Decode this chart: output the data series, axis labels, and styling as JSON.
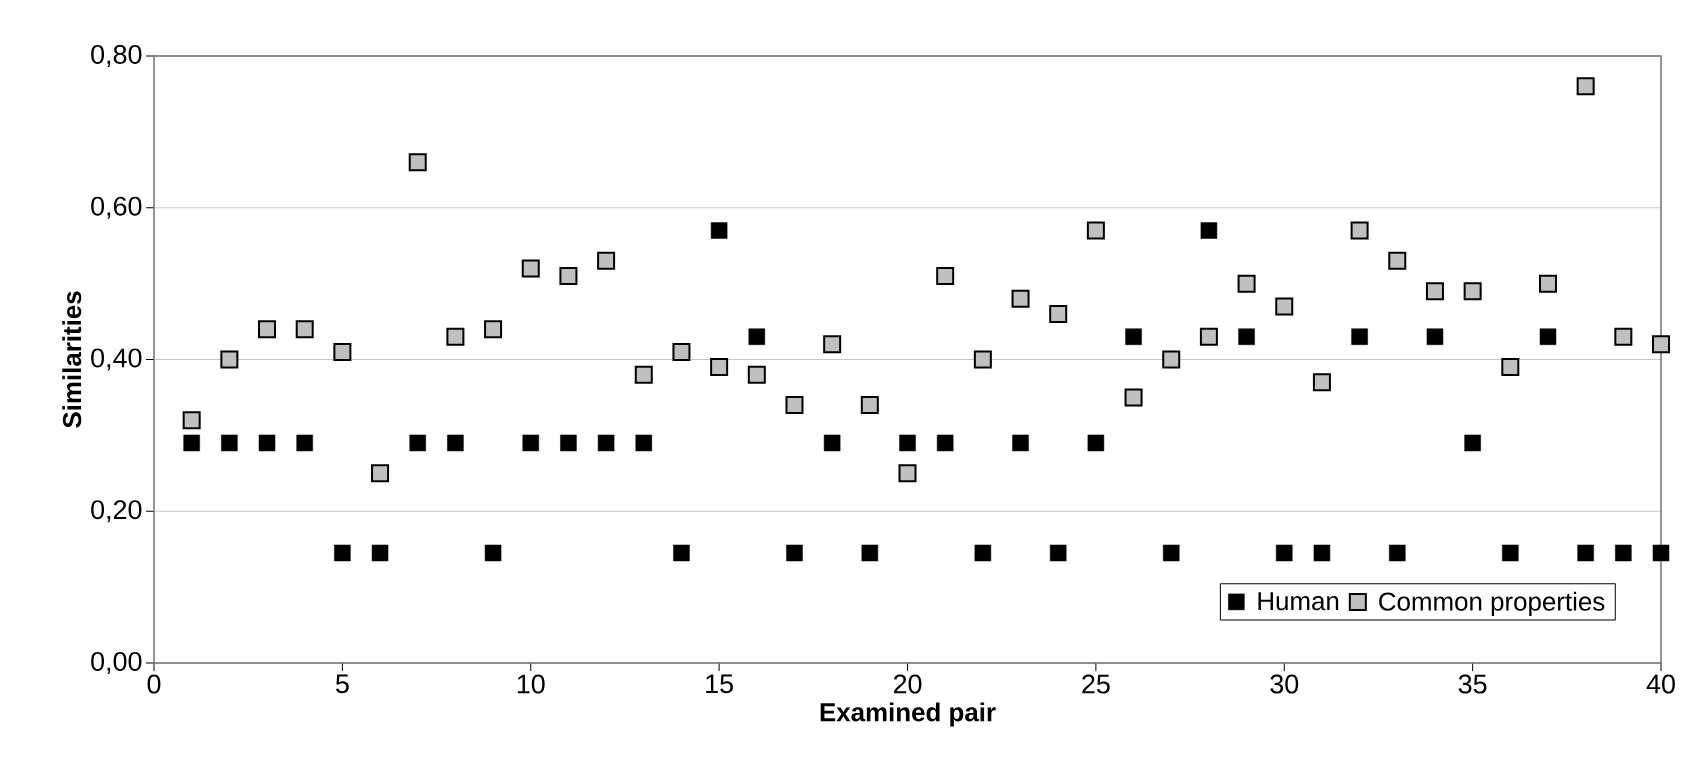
{
  "chart_data": {
    "type": "scatter",
    "xlabel": "Examined pair",
    "ylabel": "Similarities",
    "x": [
      1,
      2,
      3,
      4,
      5,
      6,
      7,
      8,
      9,
      10,
      11,
      12,
      13,
      14,
      15,
      16,
      17,
      18,
      19,
      20,
      21,
      22,
      23,
      24,
      25,
      26,
      27,
      28,
      29,
      30,
      31,
      32,
      33,
      34,
      35,
      36,
      37,
      38,
      39,
      40
    ],
    "series": [
      {
        "name": "Human",
        "color": "#000000",
        "values": [
          0.29,
          0.29,
          0.29,
          0.29,
          0.145,
          0.145,
          0.29,
          0.29,
          0.145,
          0.29,
          0.29,
          0.29,
          0.29,
          0.145,
          0.57,
          0.43,
          0.145,
          0.29,
          0.145,
          0.29,
          0.29,
          0.145,
          0.29,
          0.145,
          0.29,
          0.43,
          0.145,
          0.57,
          0.43,
          0.145,
          0.145,
          0.43,
          0.145,
          0.43,
          0.29,
          0.145,
          0.43,
          0.145,
          0.145,
          0.145
        ]
      },
      {
        "name": "Common properties",
        "color": "#c0c0c0",
        "values": [
          0.32,
          0.4,
          0.44,
          0.44,
          0.41,
          0.25,
          0.66,
          0.43,
          0.44,
          0.52,
          0.51,
          0.53,
          0.38,
          0.41,
          0.39,
          0.38,
          0.34,
          0.42,
          0.34,
          0.25,
          0.51,
          0.4,
          0.48,
          0.46,
          0.57,
          0.35,
          0.4,
          0.43,
          0.5,
          0.47,
          0.37,
          0.57,
          0.53,
          0.49,
          0.49,
          0.39,
          0.5,
          0.76,
          0.43,
          0.42
        ]
      }
    ],
    "xlim": [
      0,
      40
    ],
    "xticks": [
      0,
      5,
      10,
      15,
      20,
      25,
      30,
      35,
      40
    ],
    "ylim": [
      0,
      0.8
    ],
    "yticks": [
      {
        "value": 0,
        "label": "0,00"
      },
      {
        "value": 0.2,
        "label": "0,20"
      },
      {
        "value": 0.4,
        "label": "0,40"
      },
      {
        "value": 0.6,
        "label": "0,60"
      },
      {
        "value": 0.8,
        "label": "0,80"
      }
    ],
    "grid": "y",
    "legend": "bottom right",
    "marker": "square"
  }
}
